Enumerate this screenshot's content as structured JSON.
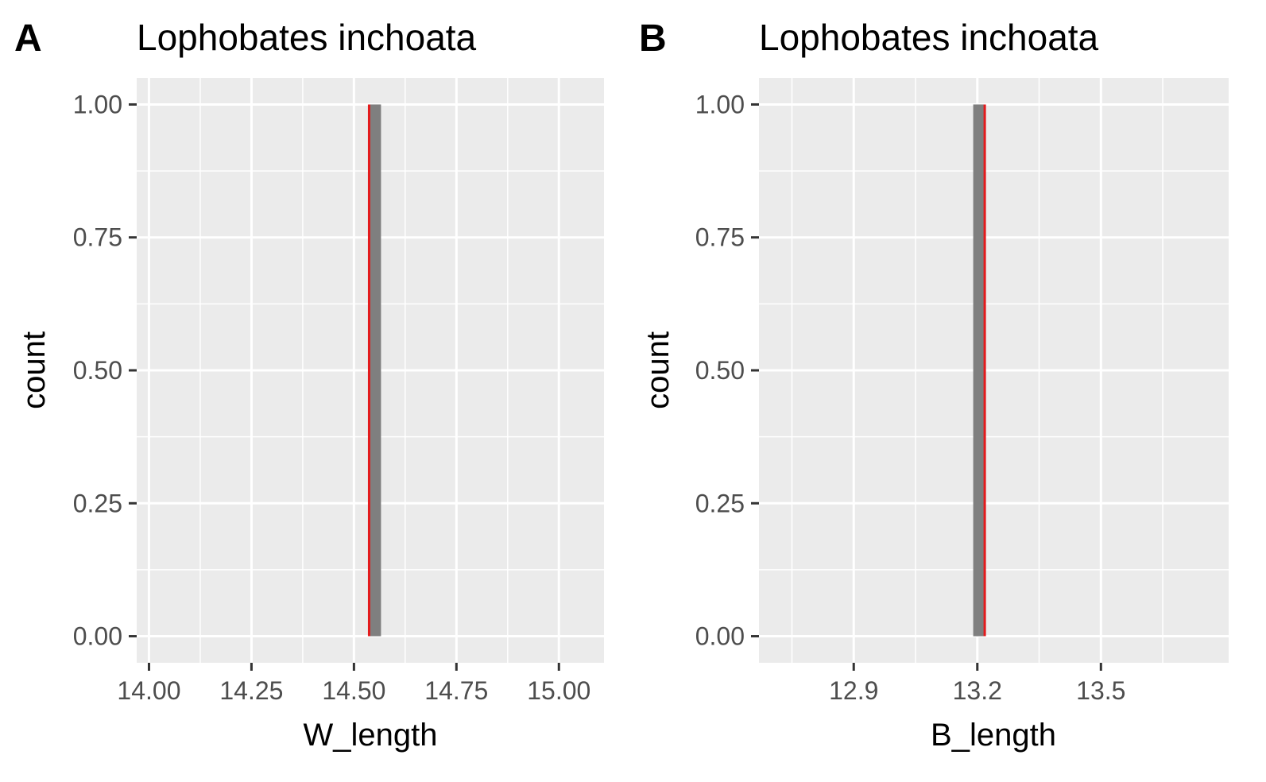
{
  "chart_data": [
    {
      "type": "histogram",
      "tag": "A",
      "title": "Lophobates inchoata",
      "xlabel": "W_length",
      "ylabel": "count",
      "xlim": [
        13.97,
        15.11
      ],
      "ylim": [
        -0.05,
        1.05
      ],
      "x_ticks": [
        14.0,
        14.25,
        14.5,
        14.75,
        15.0
      ],
      "x_tick_labels": [
        "14.00",
        "14.25",
        "14.50",
        "14.75",
        "15.00"
      ],
      "x_minor": [
        14.125,
        14.375,
        14.625,
        14.875
      ],
      "y_ticks": [
        0,
        0.25,
        0.5,
        0.75,
        1.0
      ],
      "y_tick_labels": [
        "0.00",
        "0.25",
        "0.50",
        "0.75",
        "1.00"
      ],
      "y_minor": [
        0.125,
        0.375,
        0.625,
        0.875
      ],
      "bars": [
        {
          "xmin": 14.538,
          "xmax": 14.566,
          "count": 1
        }
      ],
      "vline": {
        "x": 14.537,
        "color": "#e41a1c"
      },
      "bar_color": "#7f7f7f",
      "grid": true
    },
    {
      "type": "histogram",
      "tag": "B",
      "title": "Lophobates inchoata",
      "xlabel": "B_length",
      "ylabel": "count",
      "xlim": [
        12.67,
        13.81
      ],
      "ylim": [
        -0.05,
        1.05
      ],
      "x_ticks": [
        12.9,
        13.2,
        13.5
      ],
      "x_tick_labels": [
        "12.9",
        "13.2",
        "13.5"
      ],
      "x_minor": [
        12.75,
        13.05,
        13.35,
        13.65
      ],
      "y_ticks": [
        0,
        0.25,
        0.5,
        0.75,
        1.0
      ],
      "y_tick_labels": [
        "0.00",
        "0.25",
        "0.50",
        "0.75",
        "1.00"
      ],
      "y_minor": [
        0.125,
        0.375,
        0.625,
        0.875
      ],
      "bars": [
        {
          "xmin": 13.19,
          "xmax": 13.217,
          "count": 1
        }
      ],
      "vline": {
        "x": 13.218,
        "color": "#e41a1c"
      },
      "bar_color": "#7f7f7f",
      "grid": true
    }
  ]
}
